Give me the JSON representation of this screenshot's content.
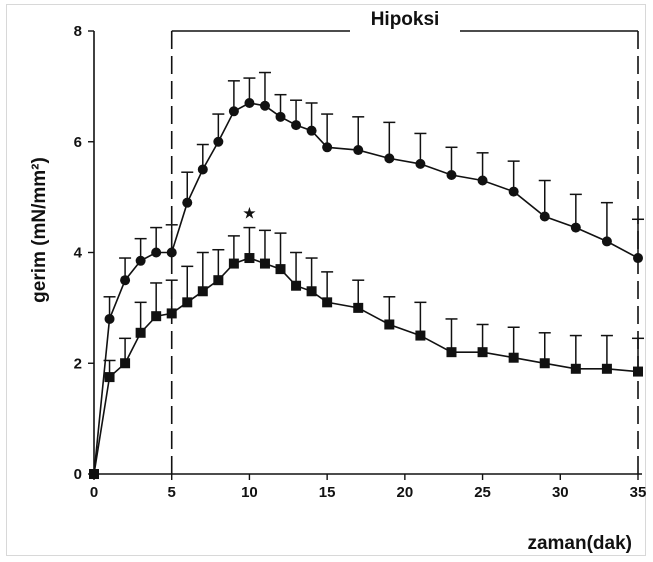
{
  "chart_data": {
    "type": "line",
    "title": "",
    "xlabel": "zaman(dak)",
    "ylabel": "gerim (mN/mm²)",
    "xlim": [
      0,
      35
    ],
    "ylim": [
      0,
      8
    ],
    "xticks": [
      0,
      5,
      10,
      15,
      20,
      25,
      30,
      35
    ],
    "yticks": [
      0,
      2,
      4,
      6,
      8
    ],
    "grid": false,
    "hypoxia_label": "Hipoksi",
    "hypoxia_range": [
      5,
      35
    ],
    "star_label": "★",
    "star_at": {
      "x": 10,
      "y": 4.7
    },
    "series": [
      {
        "marker": "circle",
        "x": [
          0,
          1,
          2,
          3,
          4,
          5,
          6,
          7,
          8,
          9,
          10,
          11,
          12,
          13,
          14,
          15,
          17,
          19,
          21,
          23,
          25,
          27,
          29,
          31,
          33,
          35
        ],
        "y": [
          0,
          2.8,
          3.5,
          3.85,
          4.0,
          4.0,
          4.9,
          5.5,
          6.0,
          6.55,
          6.7,
          6.65,
          6.45,
          6.3,
          6.2,
          5.9,
          5.85,
          5.7,
          5.6,
          5.4,
          5.3,
          5.1,
          4.65,
          4.45,
          4.2,
          3.9
        ],
        "err": [
          0,
          0.4,
          0.4,
          0.4,
          0.45,
          0.5,
          0.55,
          0.45,
          0.5,
          0.55,
          0.45,
          0.6,
          0.4,
          0.45,
          0.5,
          0.6,
          0.6,
          0.65,
          0.55,
          0.5,
          0.5,
          0.55,
          0.65,
          0.6,
          0.7,
          0.7
        ]
      },
      {
        "marker": "square",
        "x": [
          0,
          1,
          2,
          3,
          4,
          5,
          6,
          7,
          8,
          9,
          10,
          11,
          12,
          13,
          14,
          15,
          17,
          19,
          21,
          23,
          25,
          27,
          29,
          31,
          33,
          35
        ],
        "y": [
          0,
          1.75,
          2.0,
          2.55,
          2.85,
          2.9,
          3.1,
          3.3,
          3.5,
          3.8,
          3.9,
          3.8,
          3.7,
          3.4,
          3.3,
          3.1,
          3.0,
          2.7,
          2.5,
          2.2,
          2.2,
          2.1,
          2.0,
          1.9,
          1.9,
          1.85
        ],
        "err": [
          0,
          0.3,
          0.45,
          0.55,
          0.6,
          0.6,
          0.65,
          0.7,
          0.55,
          0.5,
          0.55,
          0.6,
          0.65,
          0.6,
          0.6,
          0.55,
          0.5,
          0.5,
          0.6,
          0.6,
          0.5,
          0.55,
          0.55,
          0.6,
          0.6,
          0.6
        ]
      }
    ]
  }
}
